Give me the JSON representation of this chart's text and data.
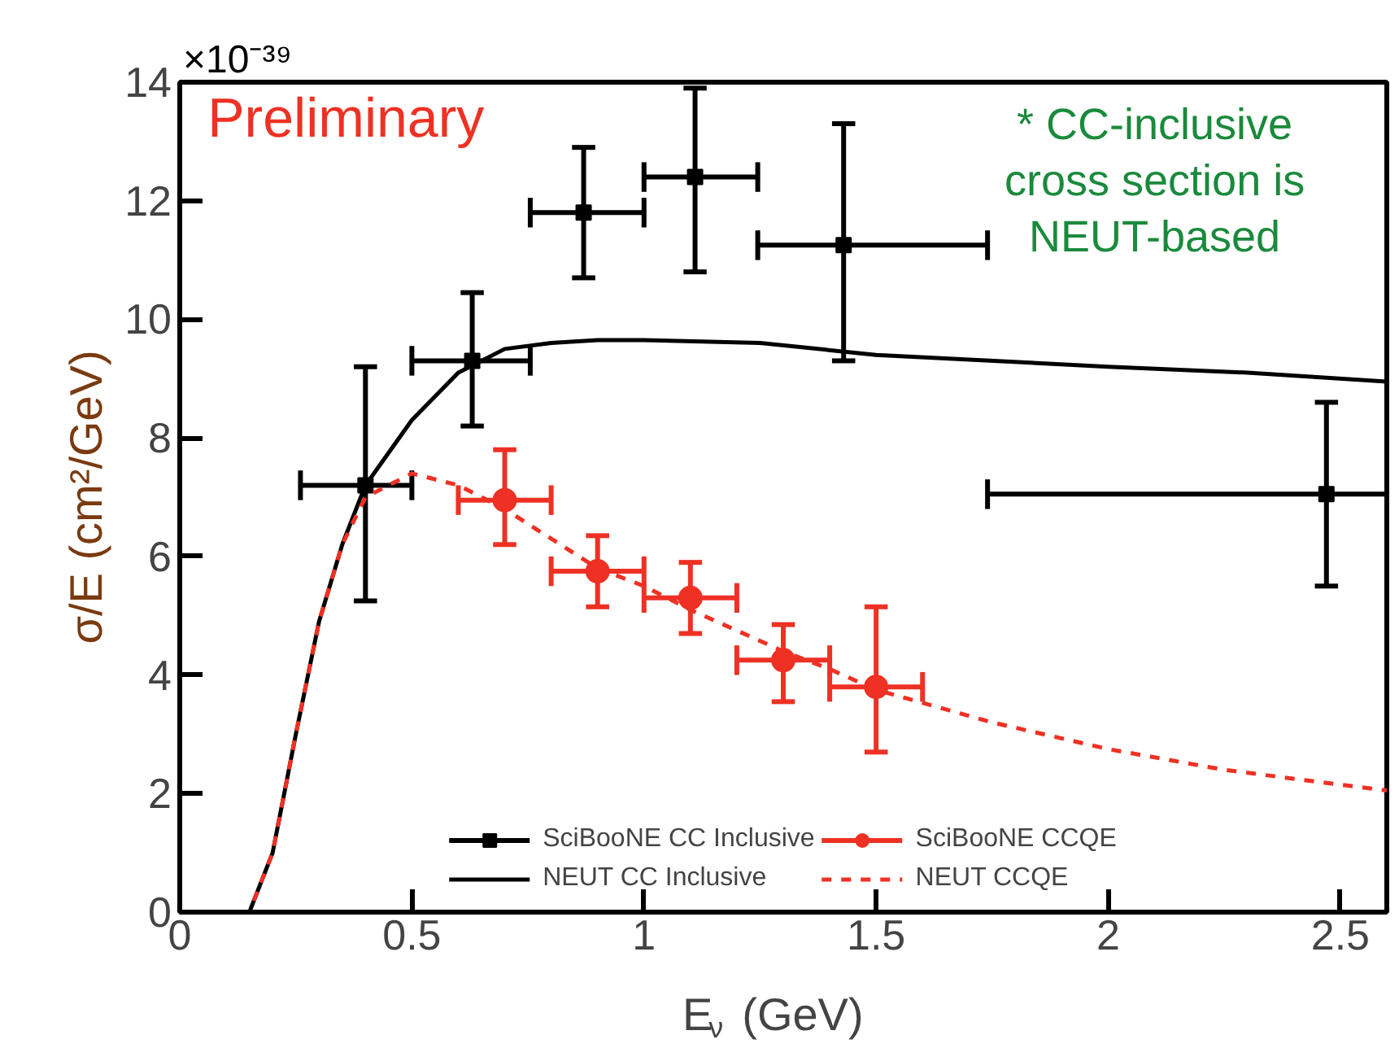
{
  "chart_data": {
    "type": "scatter",
    "xlabel": "E$_{ν}$ (GeV)",
    "ylabel": "σ/E (cm²/GeV)",
    "annotations": [
      "×10⁻³⁹",
      "Preliminary",
      "* CC-inclusive cross section is NEUT-based"
    ],
    "xlim": [
      0,
      2.6
    ],
    "ylim": [
      0,
      14
    ],
    "xticks": [
      0,
      0.5,
      1,
      1.5,
      2,
      2.5
    ],
    "yticks": [
      0,
      2,
      4,
      6,
      8,
      10,
      12,
      14
    ],
    "grid": false,
    "legend": "bottom",
    "series": [
      {
        "name": "SciBooNE CC Inclusive",
        "marker": "square",
        "color": "#000000",
        "x": [
          0.4,
          0.63,
          0.87,
          1.11,
          1.43,
          2.47
        ],
        "values": [
          7.2,
          9.3,
          11.8,
          12.4,
          11.25,
          7.05
        ],
        "errors": [
          [
            5.25,
            9.2
          ],
          [
            8.2,
            10.45
          ],
          [
            10.7,
            12.9
          ],
          [
            10.8,
            13.9
          ],
          [
            9.3,
            13.3
          ],
          [
            5.5,
            8.6
          ]
        ],
        "xerrors": [
          [
            0.26,
            0.5
          ],
          [
            0.5,
            0.755
          ],
          [
            0.755,
            1.0
          ],
          [
            1.0,
            1.245
          ],
          [
            1.245,
            1.74
          ],
          [
            1.74,
            2.6
          ]
        ]
      },
      {
        "name": "NEUT CC Inclusive",
        "type": "line",
        "line_style": "solid",
        "color": "#000000",
        "x": [
          0.05,
          0.15,
          0.2,
          0.25,
          0.3,
          0.35,
          0.4,
          0.5,
          0.6,
          0.7,
          0.8,
          0.9,
          1.0,
          1.25,
          1.5,
          2.0,
          2.3,
          2.6
        ],
        "values": [
          0,
          0,
          1.0,
          3.0,
          4.9,
          6.2,
          7.2,
          8.3,
          9.1,
          9.5,
          9.6,
          9.65,
          9.65,
          9.6,
          9.4,
          9.2,
          9.1,
          8.95
        ]
      },
      {
        "name": "SciBooNE CCQE",
        "marker": "circle",
        "color": "#ee3124",
        "x": [
          0.7,
          0.9,
          1.1,
          1.3,
          1.5
        ],
        "values": [
          6.95,
          5.75,
          5.3,
          4.25,
          3.8
        ],
        "errors": [
          [
            6.2,
            7.8
          ],
          [
            5.15,
            6.35
          ],
          [
            4.7,
            5.9
          ],
          [
            3.55,
            4.85
          ],
          [
            2.7,
            5.15
          ]
        ],
        "xerrors": [
          [
            0.6,
            0.8
          ],
          [
            0.8,
            1.0
          ],
          [
            1.0,
            1.2
          ],
          [
            1.2,
            1.4
          ],
          [
            1.4,
            1.6
          ]
        ]
      },
      {
        "name": "NEUT CCQE",
        "type": "line",
        "line_style": "dashed",
        "color": "#ee3124",
        "x": [
          0.05,
          0.15,
          0.2,
          0.25,
          0.3,
          0.35,
          0.4,
          0.5,
          0.6,
          0.7,
          0.8,
          0.9,
          1.0,
          1.1,
          1.2,
          1.3,
          1.4,
          1.5,
          1.75,
          2.0,
          2.25,
          2.6
        ],
        "values": [
          0,
          0,
          1.0,
          3.0,
          4.9,
          6.2,
          7.0,
          7.4,
          7.2,
          6.8,
          6.3,
          5.8,
          5.5,
          5.1,
          4.75,
          4.4,
          4.1,
          3.75,
          3.2,
          2.75,
          2.4,
          2.05
        ]
      }
    ]
  }
}
